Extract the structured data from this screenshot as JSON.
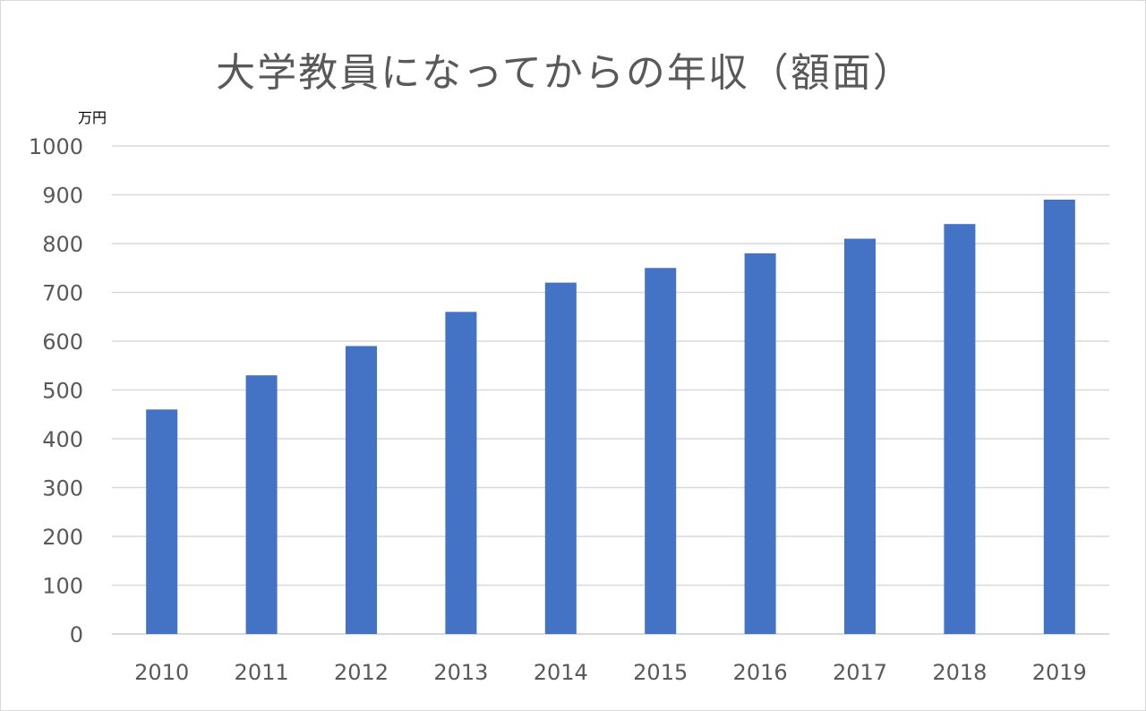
{
  "chart_data": {
    "type": "bar",
    "title": "大学教員になってからの年収（額面）",
    "y_unit": "万円",
    "categories": [
      "2010",
      "2011",
      "2012",
      "2013",
      "2014",
      "2015",
      "2016",
      "2017",
      "2018",
      "2019"
    ],
    "values": [
      460,
      530,
      590,
      660,
      720,
      750,
      780,
      810,
      840,
      890
    ],
    "ylim": [
      0,
      1000
    ],
    "yticks": [
      "0",
      "100",
      "200",
      "300",
      "400",
      "500",
      "600",
      "700",
      "800",
      "900",
      "1000"
    ],
    "grid": true,
    "legend": "none",
    "bar_color": "#4472c4",
    "grid_color": "#d9d9d9"
  }
}
